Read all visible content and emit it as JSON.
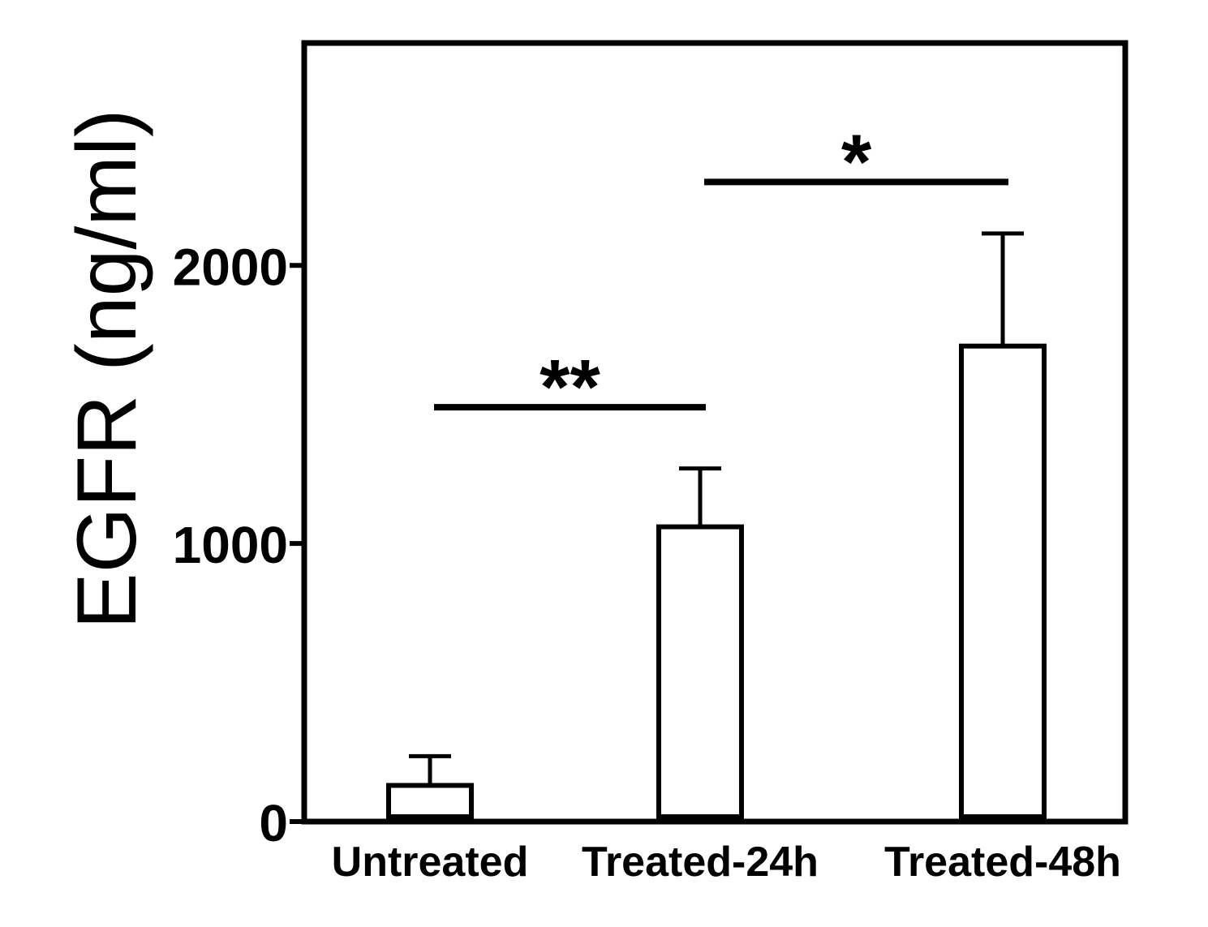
{
  "chart_data": {
    "type": "bar",
    "title": "",
    "xlabel": "",
    "ylabel": "EGFR (ng/ml)",
    "ylim": [
      0,
      2800
    ],
    "yticks": [
      0,
      1000,
      2000
    ],
    "categories": [
      "Untreated",
      "Treated-24h",
      "Treated-48h"
    ],
    "values": [
      130,
      1060,
      1710
    ],
    "error_upper": [
      235,
      1270,
      2115
    ],
    "grid": false,
    "bar_fill": "#ffffff",
    "bar_stroke": "#000000",
    "significance": [
      {
        "from": "Untreated",
        "to": "Treated-24h",
        "label": "**",
        "y": 1490
      },
      {
        "from": "Treated-24h",
        "to": "Treated-48h",
        "label": "*",
        "y": 2300
      }
    ]
  }
}
